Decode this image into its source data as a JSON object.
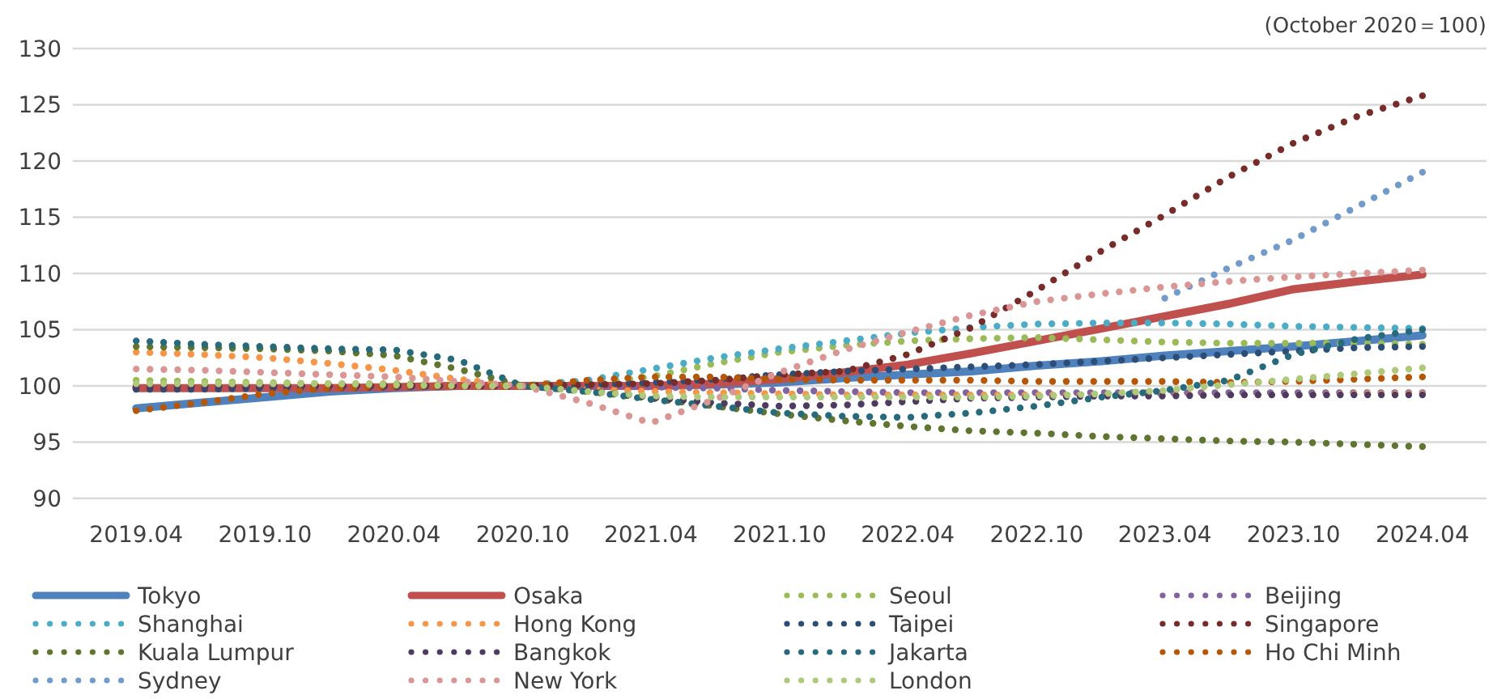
{
  "chart_data": {
    "type": "line",
    "annotations": [
      "(October 2020＝100)"
    ],
    "x": [
      "2019-04",
      "2019-07",
      "2019-10",
      "2020-01",
      "2020-04",
      "2020-07",
      "2020-10",
      "2021-01",
      "2021-04",
      "2021-07",
      "2021-10",
      "2022-01",
      "2022-04",
      "2022-07",
      "2022-10",
      "2023-01",
      "2023-04",
      "2023-07",
      "2023-10",
      "2024-01",
      "2024-04"
    ],
    "xlim": [
      "2019-01",
      "2024-07"
    ],
    "xticks": [
      {
        "value": "2019-04",
        "label": "2019.04"
      },
      {
        "value": "2019-10",
        "label": "2019.10"
      },
      {
        "value": "2020-04",
        "label": "2020.04"
      },
      {
        "value": "2020-10",
        "label": "2020.10"
      },
      {
        "value": "2021-04",
        "label": "2021.04"
      },
      {
        "value": "2021-10",
        "label": "2021.10"
      },
      {
        "value": "2022-04",
        "label": "2022.04"
      },
      {
        "value": "2022-10",
        "label": "2022.10"
      },
      {
        "value": "2023-04",
        "label": "2023.04"
      },
      {
        "value": "2023-10",
        "label": "2023.10"
      },
      {
        "value": "2024-04",
        "label": "2024.04"
      }
    ],
    "ylim": [
      90,
      130
    ],
    "yticks": [
      90,
      95,
      100,
      105,
      110,
      115,
      120,
      125,
      130
    ],
    "grid": "y",
    "legend": "bottom",
    "line_style": "dotted",
    "series": [
      {
        "name": "Tokyo",
        "color": "#4f81bd",
        "line_style": "solid",
        "values": [
          98,
          98.5,
          99,
          99.5,
          99.8,
          100,
          100,
          100,
          100,
          100.1,
          100.3,
          100.7,
          101,
          101.3,
          101.8,
          102.2,
          102.7,
          103.1,
          103.5,
          104,
          104.5
        ]
      },
      {
        "name": "Osaka",
        "color": "#c0504d",
        "line_style": "solid",
        "values": [
          99.8,
          99.8,
          99.8,
          99.8,
          99.9,
          100,
          100,
          100,
          100,
          100.2,
          100.6,
          101.2,
          101.9,
          102.9,
          104,
          105.1,
          106.2,
          107.3,
          108.6,
          109.3,
          109.9
        ]
      },
      {
        "name": "Seoul",
        "color": "#9bbb59",
        "values": [
          100.5,
          100.4,
          100.3,
          100.2,
          100.2,
          100.1,
          100,
          100.2,
          100.8,
          102,
          103,
          103.6,
          104,
          104.2,
          104.3,
          104.1,
          103.9,
          103.8,
          103.8,
          103.8,
          103.7
        ]
      },
      {
        "name": "Beijing",
        "color": "#8064a2",
        "values": [
          99.8,
          99.8,
          99.8,
          99.9,
          99.9,
          100,
          100,
          100,
          99.9,
          99.8,
          99.6,
          99.5,
          99.4,
          99.4,
          99.4,
          99.4,
          99.4,
          99.4,
          99.4,
          99.4,
          99.4
        ]
      },
      {
        "name": "Shanghai",
        "color": "#4bacc6",
        "values": [
          100,
          100,
          100,
          100,
          100,
          100,
          100,
          100.5,
          101.5,
          102.5,
          103.3,
          104,
          104.7,
          105.2,
          105.5,
          105.6,
          105.6,
          105.5,
          105.3,
          105.2,
          105.1
        ]
      },
      {
        "name": "Hong Kong",
        "color": "#f79646",
        "values": [
          103,
          102.8,
          102.5,
          102,
          101.4,
          100.6,
          100,
          99.7,
          99.5,
          99.4,
          99.3,
          99.2,
          99.2,
          99.2,
          99.2,
          99.2,
          99.2,
          99.2,
          99.2,
          99.3,
          99.3
        ]
      },
      {
        "name": "Taipei",
        "color": "#2c4d75",
        "values": [
          99.7,
          99.7,
          99.8,
          99.8,
          99.9,
          100,
          100,
          100.1,
          100.3,
          100.6,
          101,
          101.3,
          101.5,
          101.7,
          101.9,
          102.2,
          102.5,
          102.8,
          103.1,
          103.4,
          103.5
        ]
      },
      {
        "name": "Singapore",
        "color": "#772c2a",
        "values": [
          100,
          100,
          100,
          100,
          100,
          100,
          100,
          100.1,
          100.2,
          100.5,
          101,
          101.3,
          102.8,
          105.2,
          108.5,
          112,
          115.2,
          118.6,
          121.6,
          124,
          125.8
        ]
      },
      {
        "name": "Kuala Lumpur",
        "color": "#5f7530",
        "values": [
          103.5,
          103.4,
          103.3,
          103.1,
          102.7,
          101.5,
          100,
          99.5,
          98.9,
          98.2,
          97.5,
          96.9,
          96.4,
          96,
          95.8,
          95.5,
          95.3,
          95.1,
          95,
          94.8,
          94.6
        ]
      },
      {
        "name": "Bangkok",
        "color": "#4d3b62",
        "values": [
          99.9,
          99.9,
          99.9,
          99.9,
          100,
          100,
          100,
          99.6,
          99,
          98.5,
          98.2,
          98.3,
          98.6,
          98.9,
          99,
          99.1,
          99.1,
          99.2,
          99.2,
          99.2,
          99.2
        ]
      },
      {
        "name": "Jakarta",
        "color": "#276a7c",
        "values": [
          104,
          103.7,
          103.5,
          103.3,
          103.2,
          102.3,
          100,
          99.5,
          98.8,
          98.2,
          97.6,
          97.3,
          97.2,
          97.6,
          98.2,
          99,
          99.6,
          100.5,
          102.8,
          104.2,
          105
        ]
      },
      {
        "name": "Ho Chi Minh",
        "color": "#b65708",
        "values": [
          97.8,
          98.5,
          99.3,
          99.8,
          100,
          100,
          100,
          100.5,
          100.8,
          100.8,
          100.6,
          100.5,
          100.5,
          100.5,
          100.4,
          100.4,
          100.4,
          100.3,
          100.4,
          100.6,
          100.8
        ]
      },
      {
        "name": "Sydney",
        "color": "#729aca",
        "values": [
          null,
          null,
          null,
          null,
          null,
          null,
          null,
          null,
          null,
          null,
          null,
          null,
          null,
          null,
          null,
          null,
          107.8,
          110.5,
          113,
          116,
          119
        ]
      },
      {
        "name": "New York",
        "color": "#d99694",
        "values": [
          101.5,
          101.4,
          101.2,
          101,
          100.8,
          100.4,
          100,
          98.5,
          96.7,
          98.8,
          101.2,
          103.2,
          104.8,
          106.3,
          107.5,
          108.2,
          108.8,
          109.3,
          109.7,
          110,
          110.3
        ]
      },
      {
        "name": "London",
        "color": "#afc97a",
        "values": [
          100.2,
          100.2,
          100.2,
          100.2,
          100.1,
          100,
          100,
          99.5,
          99.1,
          99,
          99,
          99,
          99,
          99,
          99.1,
          99.3,
          99.6,
          100.1,
          100.6,
          101.1,
          101.6
        ]
      }
    ]
  }
}
